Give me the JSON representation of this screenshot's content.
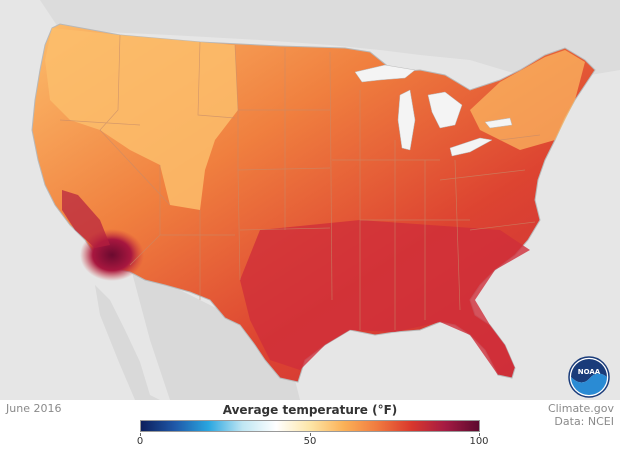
{
  "date": "June 2016",
  "legend": {
    "title": "Average temperature (°F)",
    "min_label": "0",
    "mid_label": "50",
    "max_label": "100",
    "colors": [
      "#0d1f5c",
      "#1f58a8",
      "#2aa6e0",
      "#bfe6f3",
      "#ffffff",
      "#fde6a8",
      "#fbb157",
      "#f07a3f",
      "#d9382d",
      "#a51b43",
      "#5c0a2e"
    ]
  },
  "credit": {
    "line1": "Climate.gov",
    "line2": "Data: NCEI"
  },
  "logo": {
    "name": "noaa-logo",
    "text": "NOAA"
  },
  "colors": {
    "land_background": "#e6e6e6",
    "water": "#ffffff",
    "hottest": "#6b0a2f",
    "hot": "#c9253a",
    "warm": "#e24b31",
    "mild": "#f07f45",
    "cool": "#fcbc6a"
  }
}
